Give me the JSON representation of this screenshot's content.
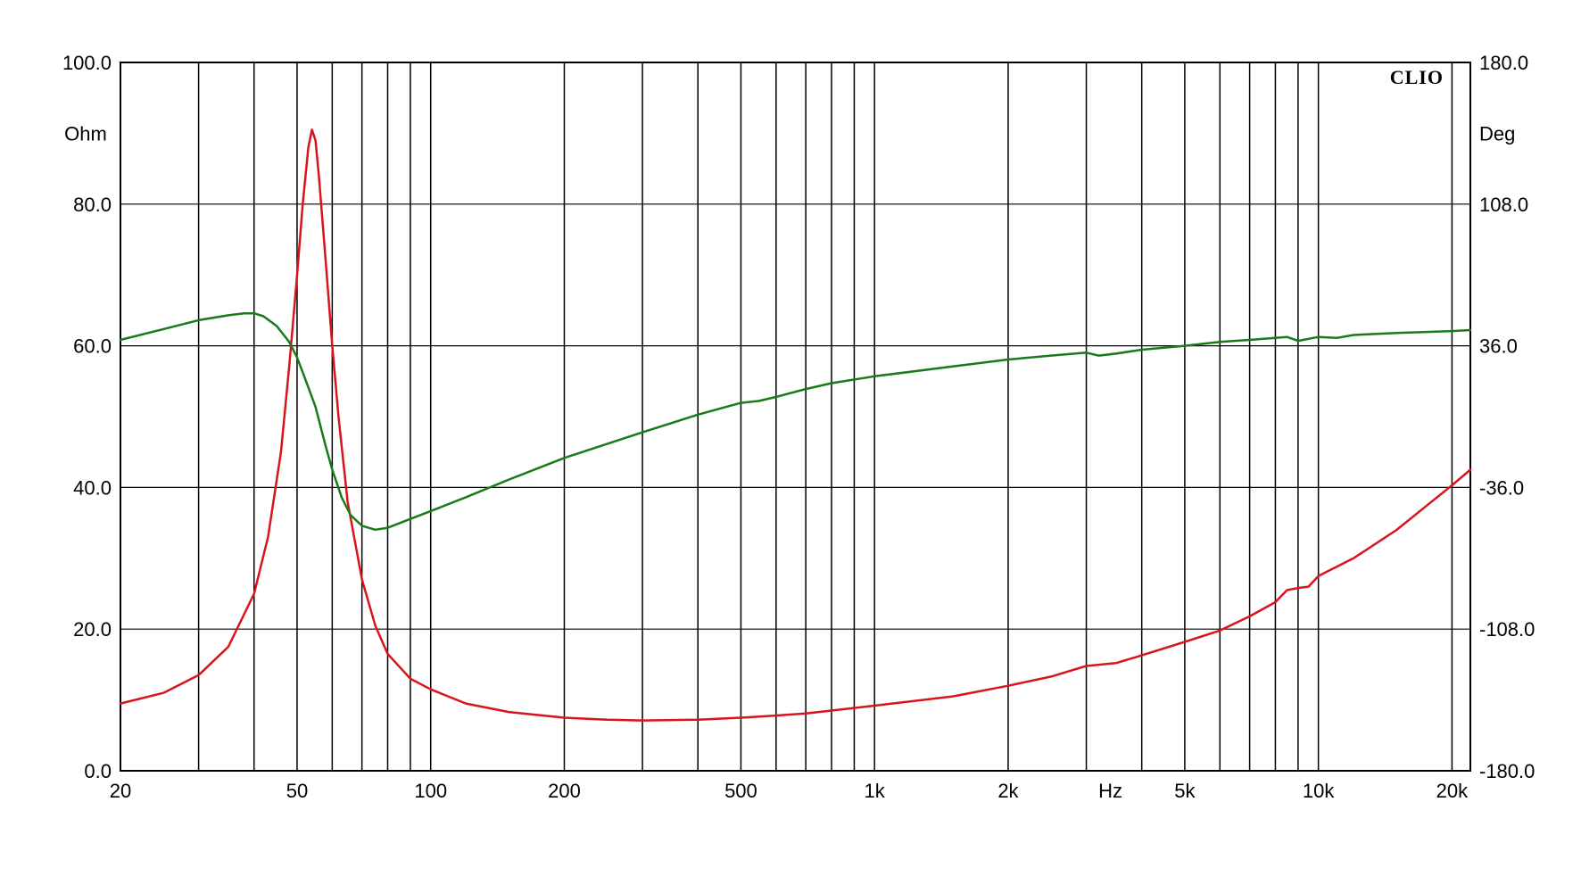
{
  "brand": "CLIO",
  "chart_data": {
    "type": "line",
    "x_scale": "log",
    "xlim": [
      20,
      22000
    ],
    "ylim_left": [
      0,
      100
    ],
    "ylim_right": [
      -180,
      180
    ],
    "left_unit": "Ohm",
    "right_unit": "Deg",
    "x_unit": "Hz",
    "grid": true,
    "left_ticks": [
      {
        "value": 0,
        "label": "0.0"
      },
      {
        "value": 20,
        "label": "20.0"
      },
      {
        "value": 40,
        "label": "40.0"
      },
      {
        "value": 60,
        "label": "60.0"
      },
      {
        "value": 80,
        "label": "80.0"
      },
      {
        "value": 100,
        "label": "100.0"
      }
    ],
    "right_ticks": [
      {
        "value": -180,
        "label": "-180.0"
      },
      {
        "value": -108,
        "label": "-108.0"
      },
      {
        "value": -36,
        "label": "-36.0"
      },
      {
        "value": 36,
        "label": "36.0"
      },
      {
        "value": 108,
        "label": "108.0"
      },
      {
        "value": 180,
        "label": "180.0"
      }
    ],
    "x_ticks": [
      {
        "value": 20,
        "label": "20"
      },
      {
        "value": 50,
        "label": "50"
      },
      {
        "value": 100,
        "label": "100"
      },
      {
        "value": 200,
        "label": "200"
      },
      {
        "value": 500,
        "label": "500"
      },
      {
        "value": 1000,
        "label": "1k"
      },
      {
        "value": 2000,
        "label": "2k"
      },
      {
        "value": 5000,
        "label": "5k"
      },
      {
        "value": 10000,
        "label": "10k"
      },
      {
        "value": 20000,
        "label": "20k"
      }
    ],
    "series": [
      {
        "axis": "left",
        "color": "#d8141c",
        "points": [
          [
            20,
            9.5
          ],
          [
            25,
            11
          ],
          [
            30,
            13.5
          ],
          [
            35,
            17.5
          ],
          [
            40,
            25
          ],
          [
            43,
            33
          ],
          [
            46,
            45
          ],
          [
            48,
            57
          ],
          [
            50,
            70
          ],
          [
            51.5,
            80
          ],
          [
            53,
            88
          ],
          [
            54,
            90.5
          ],
          [
            55,
            89
          ],
          [
            56,
            84
          ],
          [
            58,
            72
          ],
          [
            60,
            60
          ],
          [
            62,
            50
          ],
          [
            65,
            38
          ],
          [
            70,
            27
          ],
          [
            75,
            20.5
          ],
          [
            80,
            16.5
          ],
          [
            90,
            13
          ],
          [
            100,
            11.5
          ],
          [
            120,
            9.5
          ],
          [
            150,
            8.3
          ],
          [
            200,
            7.5
          ],
          [
            250,
            7.2
          ],
          [
            300,
            7.1
          ],
          [
            400,
            7.2
          ],
          [
            500,
            7.5
          ],
          [
            600,
            7.8
          ],
          [
            700,
            8.1
          ],
          [
            800,
            8.5
          ],
          [
            1000,
            9.2
          ],
          [
            1500,
            10.5
          ],
          [
            2000,
            12
          ],
          [
            2500,
            13.3
          ],
          [
            3000,
            14.8
          ],
          [
            3500,
            15.2
          ],
          [
            4000,
            16.3
          ],
          [
            5000,
            18.2
          ],
          [
            6000,
            19.8
          ],
          [
            7000,
            21.8
          ],
          [
            8000,
            23.8
          ],
          [
            8500,
            25.5
          ],
          [
            9000,
            25.8
          ],
          [
            9500,
            26
          ],
          [
            10000,
            27.5
          ],
          [
            12000,
            30
          ],
          [
            15000,
            34
          ],
          [
            18000,
            38
          ],
          [
            20000,
            40.3
          ],
          [
            22000,
            42.5
          ]
        ]
      },
      {
        "axis": "right",
        "color": "#1a7a1a",
        "points": [
          [
            20,
            39
          ],
          [
            25,
            44.5
          ],
          [
            30,
            49
          ],
          [
            35,
            51.5
          ],
          [
            38,
            52.5
          ],
          [
            40,
            52.5
          ],
          [
            42,
            51
          ],
          [
            45,
            46
          ],
          [
            48,
            38
          ],
          [
            50,
            30
          ],
          [
            52,
            20
          ],
          [
            55,
            5
          ],
          [
            58,
            -15
          ],
          [
            60,
            -27
          ],
          [
            63,
            -41
          ],
          [
            66,
            -50
          ],
          [
            70,
            -55.5
          ],
          [
            75,
            -57.5
          ],
          [
            80,
            -56.5
          ],
          [
            90,
            -52
          ],
          [
            100,
            -48
          ],
          [
            120,
            -41
          ],
          [
            150,
            -32
          ],
          [
            200,
            -21
          ],
          [
            300,
            -8
          ],
          [
            400,
            1
          ],
          [
            500,
            7
          ],
          [
            550,
            8
          ],
          [
            600,
            10
          ],
          [
            700,
            14
          ],
          [
            800,
            17
          ],
          [
            1000,
            20.5
          ],
          [
            1500,
            25.5
          ],
          [
            2000,
            29
          ],
          [
            2500,
            31
          ],
          [
            3000,
            32.5
          ],
          [
            3200,
            31
          ],
          [
            3500,
            32
          ],
          [
            4000,
            34
          ],
          [
            5000,
            36
          ],
          [
            6000,
            38
          ],
          [
            7000,
            39
          ],
          [
            8000,
            40
          ],
          [
            8500,
            40.5
          ],
          [
            9000,
            38.5
          ],
          [
            10000,
            40.5
          ],
          [
            11000,
            40
          ],
          [
            12000,
            41.5
          ],
          [
            15000,
            42.5
          ],
          [
            20000,
            43.5
          ],
          [
            22000,
            44
          ]
        ]
      }
    ]
  }
}
